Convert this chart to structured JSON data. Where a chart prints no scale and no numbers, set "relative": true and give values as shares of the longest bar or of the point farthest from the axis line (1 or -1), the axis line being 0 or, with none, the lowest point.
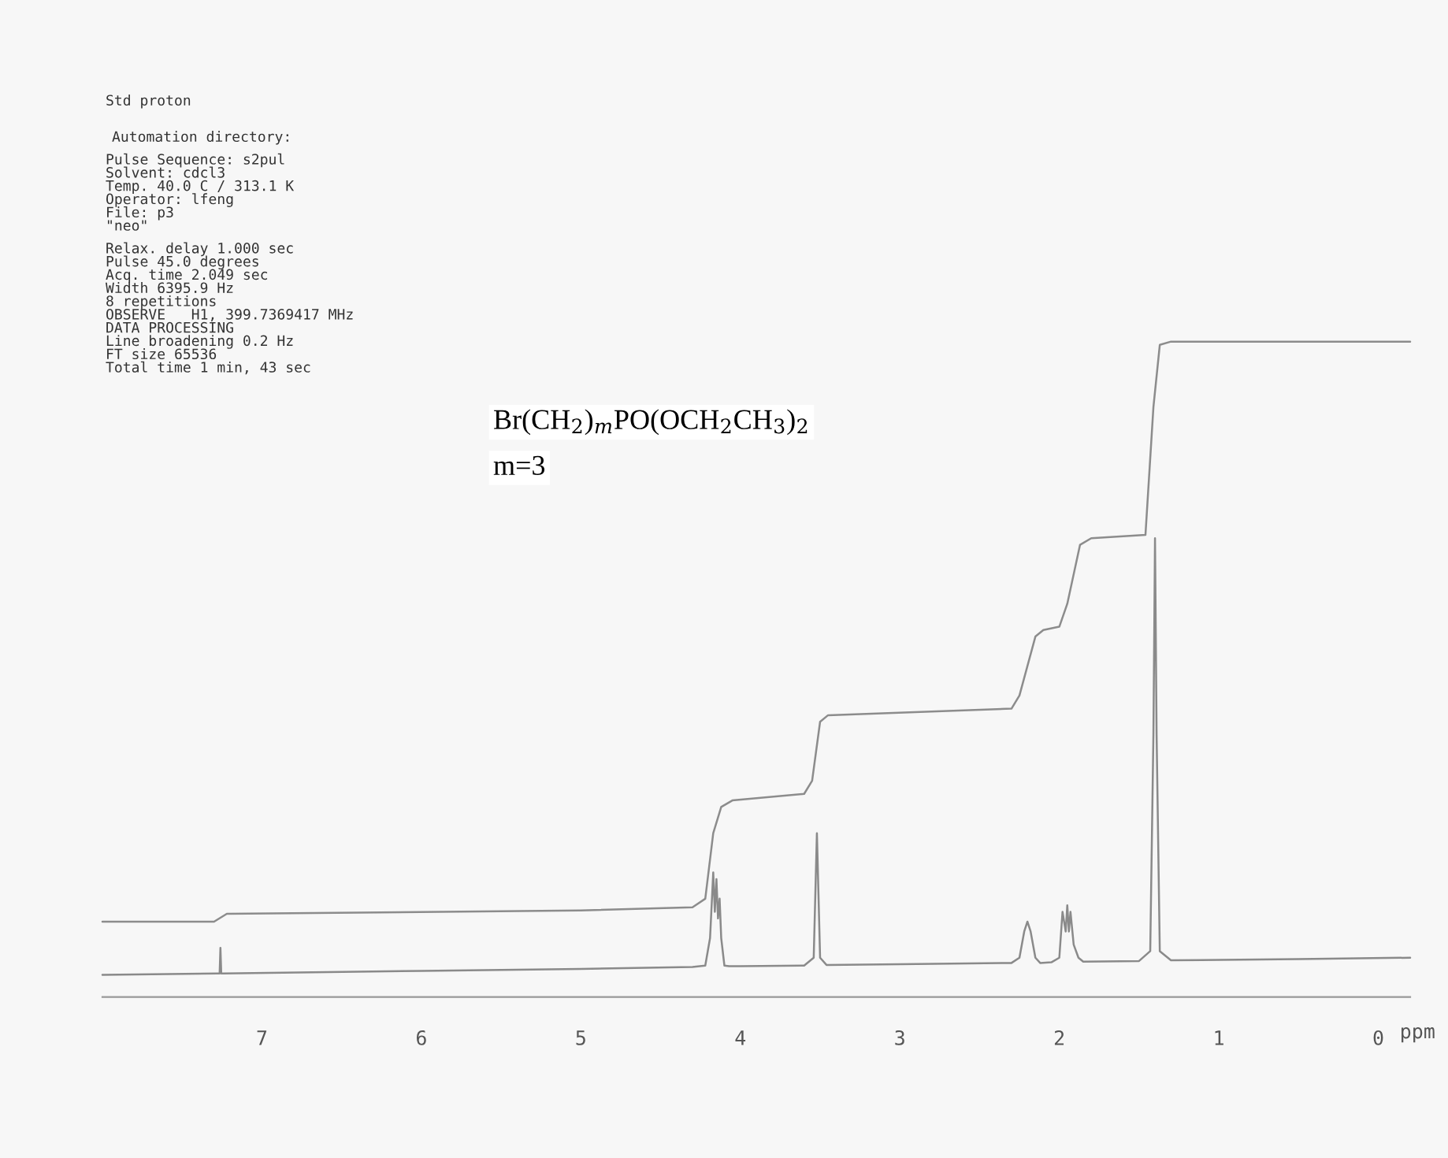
{
  "chart_data": {
    "type": "line",
    "title": "Std proton",
    "xlabel": "ppm",
    "relative": true,
    "xlim": [
      8.0,
      -0.2
    ],
    "xticks": [
      7,
      6,
      5,
      4,
      3,
      2,
      1,
      0
    ],
    "grid": false,
    "marker": "none",
    "line_style": "solid",
    "annotations": [
      "Automation directory:",
      "Pulse Sequence: s2pul",
      "Solvent: cdcl3",
      "Temp. 40.0 C / 313.1 K",
      "Operator: lfeng",
      "File: p3",
      "\"neo\"",
      "Relax. delay 1.000 sec",
      "Pulse 45.0 degrees",
      "Acq. time 2.049 sec",
      "Width 6395.9 Hz",
      "8 repetitions",
      "OBSERVE   H1, 399.7369417 MHz",
      "DATA PROCESSING",
      "Line broadening 0.2 Hz",
      "FT size 65536",
      "Total time 1 min, 43 sec",
      "Br(CH$_{2}$)$_{m}$PO(OCH$_{2}$CH$_{3}$)$_{2}$",
      "m=3"
    ],
    "series": [
      {
        "color": "#8a8a8a",
        "x": [
          8.0,
          7.28,
          7.265,
          7.26,
          7.255,
          7.24,
          6.0,
          5.0,
          4.3,
          4.22,
          4.19,
          4.17,
          4.16,
          4.15,
          4.14,
          4.13,
          4.12,
          4.1,
          4.07,
          4.0,
          3.6,
          3.54,
          3.52,
          3.5,
          3.46,
          3.0,
          2.3,
          2.25,
          2.22,
          2.2,
          2.18,
          2.15,
          2.12,
          2.05,
          2.0,
          1.98,
          1.96,
          1.95,
          1.94,
          1.93,
          1.91,
          1.88,
          1.85,
          1.5,
          1.43,
          1.41,
          1.4,
          1.39,
          1.37,
          1.3,
          0.5,
          -0.2
        ],
        "values": [
          0.034,
          0.036,
          0.036,
          0.075,
          0.036,
          0.036,
          0.04,
          0.043,
          0.046,
          0.048,
          0.09,
          0.19,
          0.13,
          0.18,
          0.12,
          0.15,
          0.09,
          0.048,
          0.047,
          0.047,
          0.048,
          0.06,
          0.25,
          0.06,
          0.049,
          0.05,
          0.052,
          0.06,
          0.1,
          0.115,
          0.1,
          0.06,
          0.052,
          0.053,
          0.06,
          0.13,
          0.1,
          0.14,
          0.1,
          0.13,
          0.08,
          0.06,
          0.054,
          0.055,
          0.07,
          0.4,
          0.7,
          0.4,
          0.07,
          0.056,
          0.058,
          0.06
        ]
      },
      {
        "color": "#8c8c8c",
        "x": [
          8.0,
          7.3,
          7.22,
          5.0,
          4.3,
          4.22,
          4.17,
          4.12,
          4.05,
          3.6,
          3.55,
          3.5,
          3.45,
          2.3,
          2.25,
          2.15,
          2.1,
          2.0,
          1.95,
          1.87,
          1.8,
          1.46,
          1.41,
          1.37,
          1.3,
          -0.2
        ],
        "values": [
          0.115,
          0.115,
          0.127,
          0.132,
          0.137,
          0.15,
          0.25,
          0.29,
          0.3,
          0.31,
          0.33,
          0.42,
          0.43,
          0.44,
          0.46,
          0.55,
          0.56,
          0.565,
          0.6,
          0.69,
          0.7,
          0.705,
          0.9,
          0.995,
          1.0,
          1.0
        ]
      }
    ]
  }
}
